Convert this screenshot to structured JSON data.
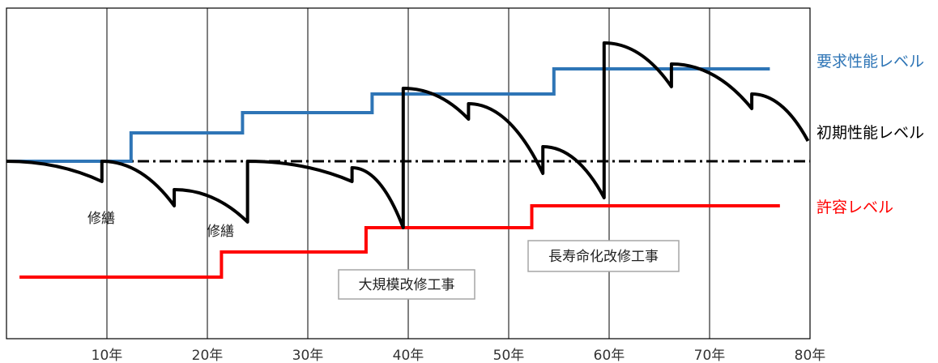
{
  "chart_data": {
    "type": "line",
    "title": "",
    "xlabel": "",
    "ylabel": "",
    "x_range_years": [
      0,
      80
    ],
    "x_ticks": [
      {
        "value": 10,
        "label": "10年"
      },
      {
        "value": 20,
        "label": "20年"
      },
      {
        "value": 30,
        "label": "30年"
      },
      {
        "value": 40,
        "label": "40年"
      },
      {
        "value": 50,
        "label": "50年"
      },
      {
        "value": 60,
        "label": "60年"
      },
      {
        "value": 70,
        "label": "70年"
      },
      {
        "value": 80,
        "label": "80年"
      }
    ],
    "grid": "vertical lines every 10 years",
    "reference_line": {
      "name": "初期性能レベル",
      "style": "dash-dot",
      "color": "#000000",
      "level": 0
    },
    "series": [
      {
        "name": "要求性能レベル",
        "color": "#2e75b6",
        "shape": "step",
        "points": [
          [
            0,
            0
          ],
          [
            12.4,
            0
          ],
          [
            12.4,
            3.5
          ],
          [
            23.5,
            3.5
          ],
          [
            23.5,
            6.0
          ],
          [
            36.4,
            6.0
          ],
          [
            36.4,
            8.3
          ],
          [
            54.5,
            8.3
          ],
          [
            54.5,
            11.4
          ],
          [
            76,
            11.4
          ]
        ]
      },
      {
        "name": "許容レベル",
        "color": "#ff0000",
        "shape": "step",
        "points": [
          [
            1.3,
            -14.3
          ],
          [
            21.4,
            -14.3
          ],
          [
            21.4,
            -11.2
          ],
          [
            35.8,
            -11.2
          ],
          [
            35.8,
            -8.2
          ],
          [
            52.3,
            -8.2
          ],
          [
            52.3,
            -5.5
          ],
          [
            77,
            -5.5
          ]
        ]
      },
      {
        "name": "",
        "color": "#000000",
        "shape": "sawtooth",
        "description_points": [
          [
            0,
            0
          ],
          [
            9.5,
            -2.5
          ],
          [
            9.5,
            0
          ],
          [
            16.7,
            -5.5
          ],
          [
            16.7,
            -3.5
          ],
          [
            24.0,
            -7.5
          ],
          [
            24.0,
            0
          ],
          [
            34.4,
            -2.5
          ],
          [
            34.4,
            -0.8
          ],
          [
            39.5,
            -8.2
          ],
          [
            39.5,
            9.0
          ],
          [
            46.0,
            5.2
          ],
          [
            46.0,
            7.1
          ],
          [
            53.4,
            -1.5
          ],
          [
            53.4,
            1.8
          ],
          [
            59.5,
            -4.5
          ],
          [
            59.5,
            14.6
          ],
          [
            66.2,
            9.2
          ],
          [
            66.2,
            12.0
          ],
          [
            74.2,
            6.5
          ],
          [
            74.2,
            8.3
          ],
          [
            79.8,
            2.5
          ]
        ]
      }
    ],
    "legend": {
      "placement": "right",
      "entries": [
        {
          "label": "要求性能レベル",
          "color": "#2e75b6"
        },
        {
          "label": "初期性能レベル",
          "color": "#000000"
        },
        {
          "label": "許容レベル",
          "color": "#ff0000"
        }
      ]
    },
    "annotations": [
      {
        "text": "修繕",
        "x": 10
      },
      {
        "text": "修繕",
        "x": 22
      },
      {
        "text": "大規模改修工事",
        "x": 40,
        "boxed": true
      },
      {
        "text": "長寿命化改修工事",
        "x": 60,
        "boxed": true
      }
    ]
  }
}
